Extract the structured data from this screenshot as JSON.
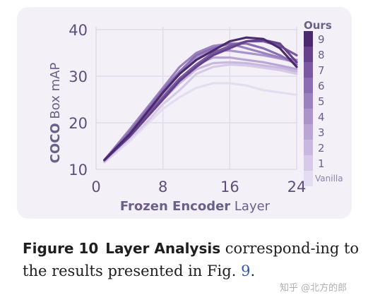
{
  "chart_data": {
    "type": "line",
    "xlabel_bold": "Frozen Encoder",
    "xlabel_rest": " Layer",
    "ylabel_bold": "COCO",
    "ylabel_rest": " Box mAP",
    "xlim": [
      0,
      24
    ],
    "ylim": [
      10,
      40
    ],
    "x_ticks": [
      "0",
      "8",
      "16",
      "24"
    ],
    "y_ticks": [
      "10",
      "20",
      "30",
      "40"
    ],
    "grid": true,
    "legend_position": "right",
    "legend_top": "Ours",
    "legend_bottom": "Vanilla",
    "legend_numbers": [
      "1",
      "2",
      "3",
      "4",
      "5",
      "6",
      "7",
      "8",
      "9"
    ],
    "x": [
      1,
      4,
      6,
      8,
      10,
      12,
      14,
      16,
      18,
      20,
      22,
      24
    ],
    "series": [
      {
        "level": 0,
        "color": "#e4dcf0",
        "values": [
          11.5,
          16.0,
          19.5,
          23.0,
          25.5,
          27.5,
          28.5,
          28.5,
          28.0,
          27.0,
          26.5,
          26.0
        ]
      },
      {
        "level": 1,
        "color": "#d6cae8",
        "values": [
          11.6,
          16.5,
          20.0,
          24.0,
          27.0,
          30.5,
          32.0,
          32.5,
          32.3,
          31.8,
          31.3,
          30.5
        ]
      },
      {
        "level": 2,
        "color": "#c8b8df",
        "values": [
          11.7,
          17.0,
          21.0,
          25.0,
          28.5,
          31.5,
          32.8,
          33.0,
          32.8,
          32.3,
          31.8,
          31.0
        ]
      },
      {
        "level": 3,
        "color": "#b9a6d5",
        "values": [
          11.8,
          17.5,
          21.5,
          26.0,
          29.5,
          32.5,
          34.0,
          34.0,
          33.5,
          33.0,
          32.3,
          31.5
        ]
      },
      {
        "level": 4,
        "color": "#aa94ca",
        "values": [
          11.9,
          18.0,
          22.5,
          27.0,
          31.0,
          34.0,
          35.5,
          35.5,
          35.0,
          34.5,
          33.8,
          33.0
        ]
      },
      {
        "level": 5,
        "color": "#9a82be",
        "values": [
          12.0,
          18.5,
          23.0,
          27.5,
          32.0,
          35.0,
          36.5,
          37.0,
          36.0,
          35.0,
          34.0,
          33.5
        ]
      },
      {
        "level": 6,
        "color": "#8a6eb1",
        "values": [
          12.0,
          18.0,
          22.5,
          27.0,
          31.0,
          34.5,
          36.0,
          37.0,
          37.0,
          36.0,
          34.5,
          32.5
        ]
      },
      {
        "level": 7,
        "color": "#79599f",
        "values": [
          12.0,
          17.5,
          21.5,
          25.5,
          29.5,
          32.5,
          35.0,
          36.5,
          37.5,
          37.5,
          36.5,
          34.5
        ]
      },
      {
        "level": 8,
        "color": "#654289",
        "values": [
          12.0,
          17.0,
          21.0,
          25.0,
          29.0,
          32.0,
          34.5,
          36.0,
          37.5,
          37.8,
          37.0,
          33.0
        ]
      },
      {
        "level": 9,
        "color": "#4a2a6e",
        "values": [
          12.0,
          17.5,
          22.0,
          26.5,
          30.5,
          33.5,
          35.5,
          37.5,
          38.3,
          38.0,
          36.0,
          32.0
        ]
      }
    ]
  },
  "caption": {
    "label": "Figure 10",
    "title": "Layer Analysis",
    "text": " correspond-ing to the results presented in Fig. ",
    "ref": "9",
    "end": "."
  },
  "watermark": "知乎 @北方的郎"
}
